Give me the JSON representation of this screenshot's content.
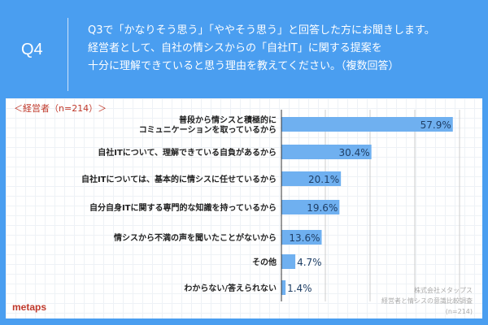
{
  "header": {
    "q_label": "Q4",
    "question_lines": [
      "Q3で「かなりそう思う」「ややそう思う」と回答した方にお聞きします。",
      "経営者として、自社の情シスからの「自社IT」に関する提案を",
      "十分に理解できていると思う理由を教えてください。（複数回答）"
    ]
  },
  "chart_data": {
    "type": "bar",
    "orientation": "horizontal",
    "title": "＜経営者（n=214）＞",
    "categories": [
      [
        "普段から情シスと積極的に",
        "コミュニケーションを取っているから"
      ],
      [
        "自社ITについて、理解できている自負があるから"
      ],
      [
        "自社ITについては、基本的に情シスに任せているから"
      ],
      [
        "自分自身ITに関する専門的な知識を持っているから"
      ],
      [
        "情シスから不満の声を聞いたことがないから"
      ],
      [
        "その他"
      ],
      [
        "わからない/答えられない"
      ]
    ],
    "values": [
      57.9,
      30.4,
      20.1,
      19.6,
      13.6,
      4.7,
      1.4
    ],
    "value_labels": [
      "57.9%",
      "30.4%",
      "20.1%",
      "19.6%",
      "13.6%",
      "4.7%",
      "1.4%"
    ],
    "xlim": [
      0,
      100
    ],
    "bar_color": "#6fb0f0"
  },
  "footer": {
    "logo": "metaps",
    "credit_lines": [
      "株式会社メタップス",
      "経営者と情シスの意識比較調査",
      "(n=214)"
    ]
  }
}
